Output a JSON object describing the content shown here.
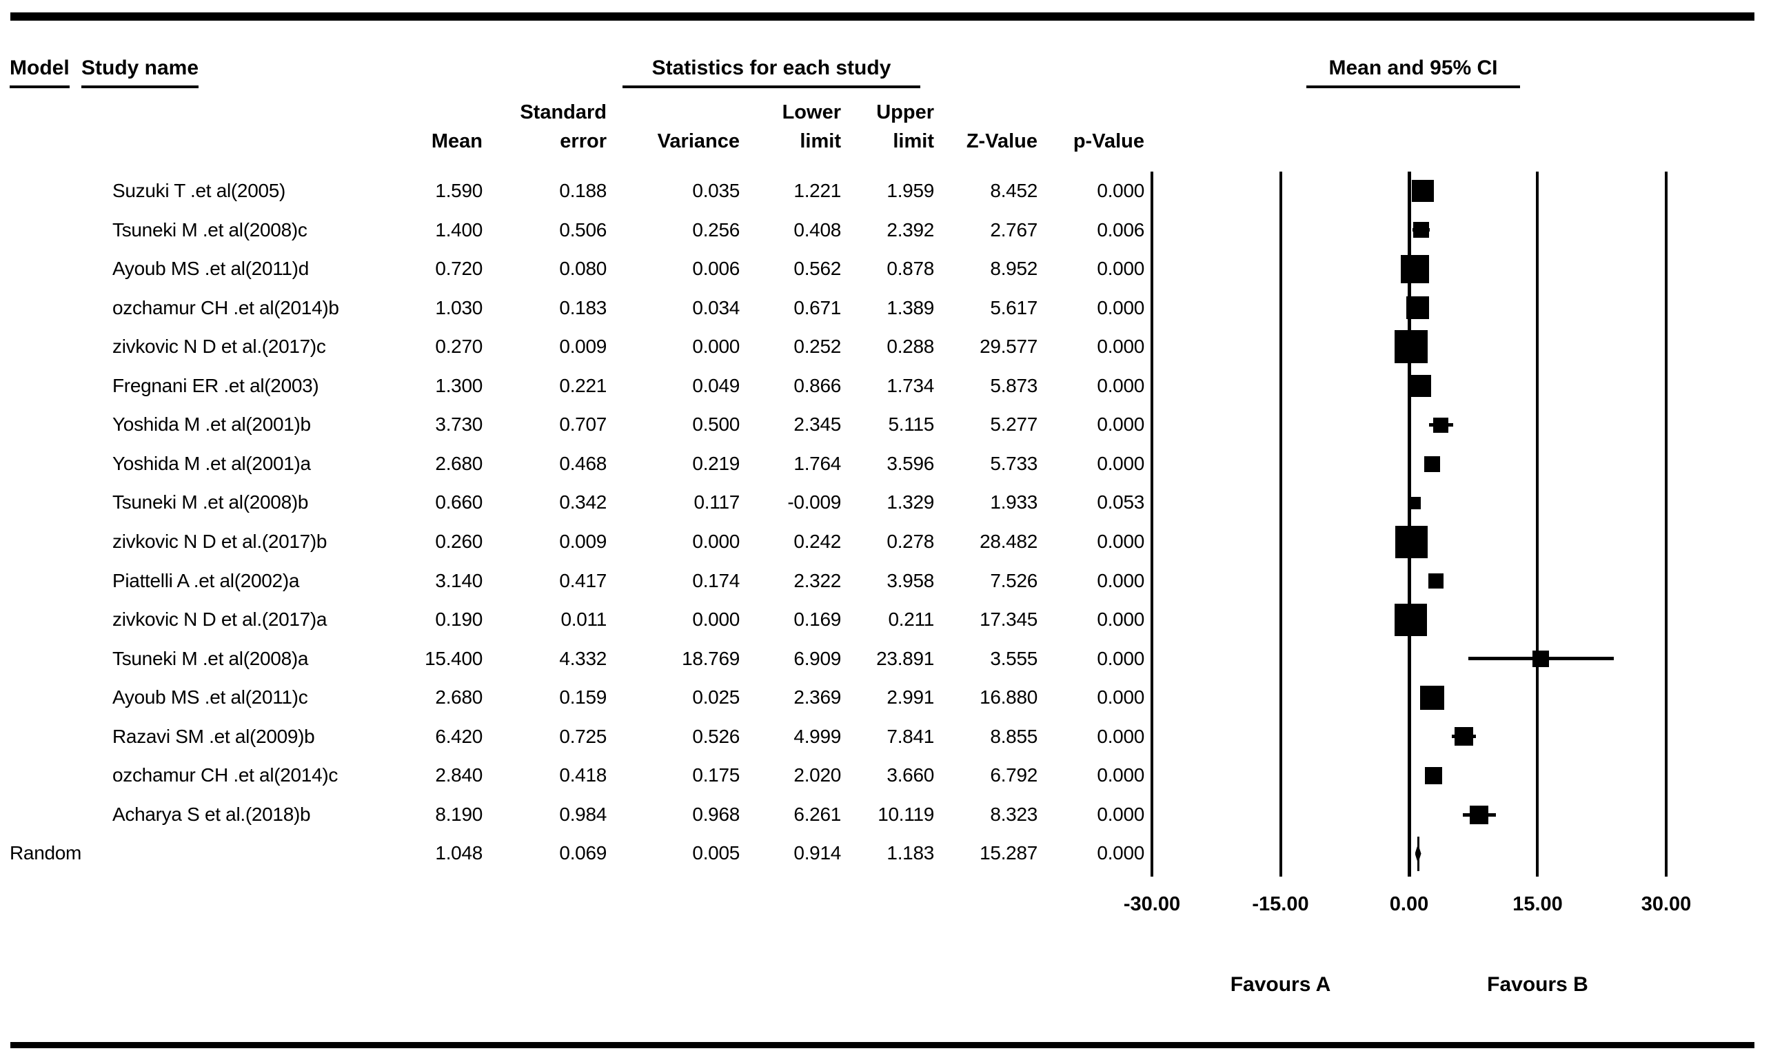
{
  "header": {
    "model": "Model",
    "study_name": "Study name",
    "stats_title": "Statistics for each study",
    "ci_title": "Mean and 95% CI"
  },
  "columns": {
    "mean": "Mean",
    "standard_error": "Standard\nerror",
    "variance": "Variance",
    "lower_limit": "Lower\nlimit",
    "upper_limit": "Upper\nlimit",
    "z_value": "Z-Value",
    "p_value": "p-Value"
  },
  "axis": {
    "tick_labels": [
      "-30.00",
      "-15.00",
      "0.00",
      "15.00",
      "30.00"
    ],
    "favours_a": "Favours A",
    "favours_b": "Favours B"
  },
  "chart_data": {
    "type": "forest",
    "title": "Mean and 95% CI",
    "xlim": [
      -30,
      30
    ],
    "x_ticks": [
      -30,
      -15,
      0,
      15,
      30
    ],
    "footer_left": "Favours A",
    "footer_right": "Favours B",
    "studies": [
      {
        "model": "",
        "study": "Suzuki T .et al(2005)",
        "mean": "1.590",
        "standard_error": "0.188",
        "variance": "0.035",
        "lower_limit": "1.221",
        "upper_limit": "1.959",
        "z_value": "8.452",
        "p_value": "0.000",
        "marker": "square",
        "marker_size": 32
      },
      {
        "model": "",
        "study": "Tsuneki M .et al(2008)c",
        "mean": "1.400",
        "standard_error": "0.506",
        "variance": "0.256",
        "lower_limit": "0.408",
        "upper_limit": "2.392",
        "z_value": "2.767",
        "p_value": "0.006",
        "marker": "square",
        "marker_size": 23
      },
      {
        "model": "",
        "study": "Ayoub MS .et al(2011)d",
        "mean": "0.720",
        "standard_error": "0.080",
        "variance": "0.006",
        "lower_limit": "0.562",
        "upper_limit": "0.878",
        "z_value": "8.952",
        "p_value": "0.000",
        "marker": "square",
        "marker_size": 41
      },
      {
        "model": "",
        "study": "ozchamur CH .et al(2014)b",
        "mean": "1.030",
        "standard_error": "0.183",
        "variance": "0.034",
        "lower_limit": "0.671",
        "upper_limit": "1.389",
        "z_value": "5.617",
        "p_value": "0.000",
        "marker": "square",
        "marker_size": 33
      },
      {
        "model": "",
        "study": "zivkovic N D et al.(2017)c",
        "mean": "0.270",
        "standard_error": "0.009",
        "variance": "0.000",
        "lower_limit": "0.252",
        "upper_limit": "0.288",
        "z_value": "29.577",
        "p_value": "0.000",
        "marker": "square",
        "marker_size": 48
      },
      {
        "model": "",
        "study": "Fregnani ER .et al(2003)",
        "mean": "1.300",
        "standard_error": "0.221",
        "variance": "0.049",
        "lower_limit": "0.866",
        "upper_limit": "1.734",
        "z_value": "5.873",
        "p_value": "0.000",
        "marker": "square",
        "marker_size": 32
      },
      {
        "model": "",
        "study": "Yoshida M .et al(2001)b",
        "mean": "3.730",
        "standard_error": "0.707",
        "variance": "0.500",
        "lower_limit": "2.345",
        "upper_limit": "5.115",
        "z_value": "5.277",
        "p_value": "0.000",
        "marker": "square",
        "marker_size": 22
      },
      {
        "model": "",
        "study": "Yoshida M .et al(2001)a",
        "mean": "2.680",
        "standard_error": "0.468",
        "variance": "0.219",
        "lower_limit": "1.764",
        "upper_limit": "3.596",
        "z_value": "5.733",
        "p_value": "0.000",
        "marker": "square",
        "marker_size": 23
      },
      {
        "model": "",
        "study": "Tsuneki M .et al(2008)b",
        "mean": "0.660",
        "standard_error": "0.342",
        "variance": "0.117",
        "lower_limit": "-0.009",
        "upper_limit": "1.329",
        "z_value": "1.933",
        "p_value": "0.053",
        "marker": "square",
        "marker_size": 18
      },
      {
        "model": "",
        "study": "zivkovic N D et al.(2017)b",
        "mean": "0.260",
        "standard_error": "0.009",
        "variance": "0.000",
        "lower_limit": "0.242",
        "upper_limit": "0.278",
        "z_value": "28.482",
        "p_value": "0.000",
        "marker": "square",
        "marker_size": 47
      },
      {
        "model": "",
        "study": "Piattelli A .et al(2002)a",
        "mean": "3.140",
        "standard_error": "0.417",
        "variance": "0.174",
        "lower_limit": "2.322",
        "upper_limit": "3.958",
        "z_value": "7.526",
        "p_value": "0.000",
        "marker": "square",
        "marker_size": 22
      },
      {
        "model": "",
        "study": "zivkovic N D et al.(2017)a",
        "mean": "0.190",
        "standard_error": "0.011",
        "variance": "0.000",
        "lower_limit": "0.169",
        "upper_limit": "0.211",
        "z_value": "17.345",
        "p_value": "0.000",
        "marker": "square",
        "marker_size": 47
      },
      {
        "model": "",
        "study": "Tsuneki M .et al(2008)a",
        "mean": "15.400",
        "standard_error": "4.332",
        "variance": "18.769",
        "lower_limit": "6.909",
        "upper_limit": "23.891",
        "z_value": "3.555",
        "p_value": "0.000",
        "marker": "square",
        "marker_size": 24
      },
      {
        "model": "",
        "study": "Ayoub MS .et al(2011)c",
        "mean": "2.680",
        "standard_error": "0.159",
        "variance": "0.025",
        "lower_limit": "2.369",
        "upper_limit": "2.991",
        "z_value": "16.880",
        "p_value": "0.000",
        "marker": "square",
        "marker_size": 35
      },
      {
        "model": "",
        "study": "Razavi SM .et al(2009)b",
        "mean": "6.420",
        "standard_error": "0.725",
        "variance": "0.526",
        "lower_limit": "4.999",
        "upper_limit": "7.841",
        "z_value": "8.855",
        "p_value": "0.000",
        "marker": "square",
        "marker_size": 27
      },
      {
        "model": "",
        "study": "ozchamur CH .et al(2014)c",
        "mean": "2.840",
        "standard_error": "0.418",
        "variance": "0.175",
        "lower_limit": "2.020",
        "upper_limit": "3.660",
        "z_value": "6.792",
        "p_value": "0.000",
        "marker": "square",
        "marker_size": 25
      },
      {
        "model": "",
        "study": "Acharya S et al.(2018)b",
        "mean": "8.190",
        "standard_error": "0.984",
        "variance": "0.968",
        "lower_limit": "6.261",
        "upper_limit": "10.119",
        "z_value": "8.323",
        "p_value": "0.000",
        "marker": "square",
        "marker_size": 27
      },
      {
        "model": "Random",
        "study": "",
        "mean": "1.048",
        "standard_error": "0.069",
        "variance": "0.005",
        "lower_limit": "0.914",
        "upper_limit": "1.183",
        "z_value": "15.287",
        "p_value": "0.000",
        "marker": "diamond",
        "marker_size": 28
      }
    ]
  }
}
